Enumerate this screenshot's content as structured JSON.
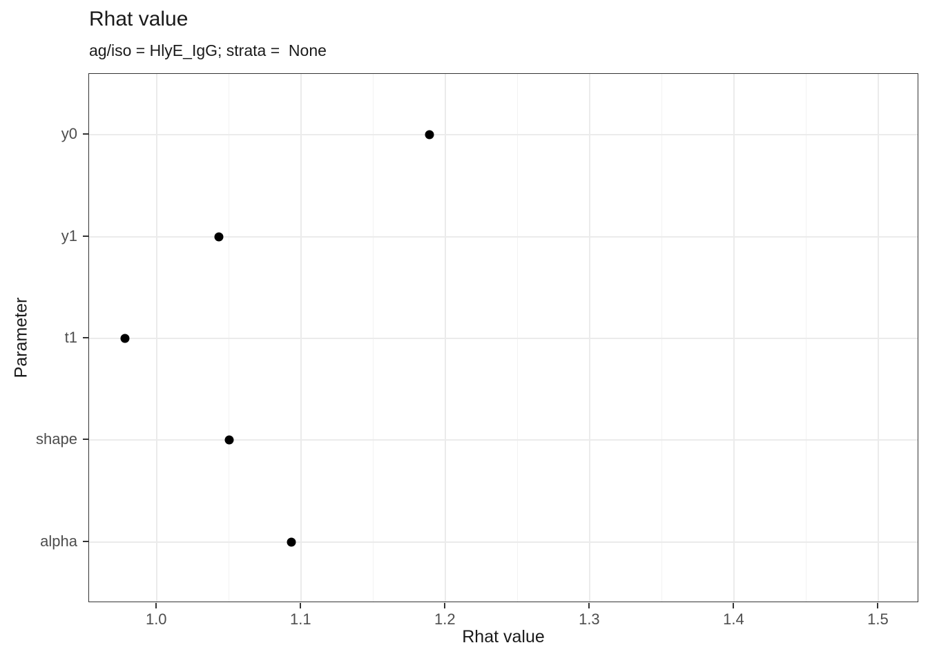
{
  "chart_data": {
    "type": "scatter",
    "title": "Rhat value",
    "subtitle": "ag/iso = HlyE_IgG; strata =  None",
    "xlabel": "Rhat value",
    "ylabel": "Parameter",
    "categories": [
      "y0",
      "y1",
      "t1",
      "shape",
      "alpha"
    ],
    "values": [
      1.189,
      1.043,
      0.978,
      1.05,
      1.093
    ],
    "xlim": [
      0.953,
      1.528
    ],
    "x_major_ticks": [
      1.0,
      1.1,
      1.2,
      1.3,
      1.4,
      1.5
    ],
    "x_tick_labels": [
      "1.0",
      "1.1",
      "1.2",
      "1.3",
      "1.4",
      "1.5"
    ],
    "x_minor_ticks": [
      1.05,
      1.15,
      1.25,
      1.35,
      1.45
    ],
    "grid": "major-and-minor vertical, major horizontal per category",
    "legend": "none",
    "point_shape": "filled-circle",
    "colors": {
      "point": "#000000",
      "grid_major": "#EBEBEB",
      "grid_minor": "#F2F2F2",
      "panel_border": "#333333",
      "axis_text": "#4D4D4D",
      "title_text": "#1a1a1a",
      "background": "#FFFFFF"
    }
  }
}
